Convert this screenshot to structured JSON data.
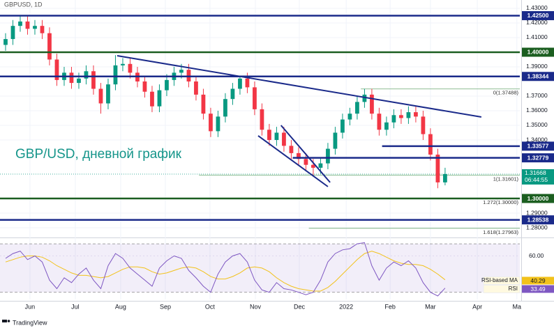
{
  "title": "GBPUSD, 1D",
  "brand": "TradingView",
  "chart_data": [
    {
      "type": "candlestick",
      "annotation": "GBP/USD, дневной график",
      "up_color": "#089981",
      "down_color": "#f23645",
      "values": [
        [
          1.405,
          1.413,
          1.401,
          1.409
        ],
        [
          1.409,
          1.422,
          1.405,
          1.418
        ],
        [
          1.418,
          1.425,
          1.414,
          1.421
        ],
        [
          1.421,
          1.425,
          1.412,
          1.416
        ],
        [
          1.416,
          1.422,
          1.412,
          1.418
        ],
        [
          1.418,
          1.422,
          1.409,
          1.413
        ],
        [
          1.413,
          1.417,
          1.391,
          1.395
        ],
        [
          1.395,
          1.399,
          1.377,
          1.381
        ],
        [
          1.381,
          1.39,
          1.377,
          1.386
        ],
        [
          1.386,
          1.39,
          1.375,
          1.379
        ],
        [
          1.379,
          1.386,
          1.375,
          1.382
        ],
        [
          1.382,
          1.391,
          1.378,
          1.387
        ],
        [
          1.387,
          1.391,
          1.371,
          1.375
        ],
        [
          1.375,
          1.379,
          1.358,
          1.365
        ],
        [
          1.365,
          1.382,
          1.361,
          1.378
        ],
        [
          1.378,
          1.398,
          1.374,
          1.391
        ],
        [
          1.391,
          1.396,
          1.387,
          1.392
        ],
        [
          1.392,
          1.396,
          1.382,
          1.386
        ],
        [
          1.386,
          1.39,
          1.376,
          1.38
        ],
        [
          1.38,
          1.384,
          1.369,
          1.373
        ],
        [
          1.373,
          1.377,
          1.359,
          1.363
        ],
        [
          1.363,
          1.378,
          1.359,
          1.374
        ],
        [
          1.374,
          1.385,
          1.37,
          1.381
        ],
        [
          1.381,
          1.39,
          1.377,
          1.386
        ],
        [
          1.386,
          1.392,
          1.382,
          1.388
        ],
        [
          1.388,
          1.392,
          1.376,
          1.38
        ],
        [
          1.38,
          1.384,
          1.367,
          1.371
        ],
        [
          1.371,
          1.375,
          1.354,
          1.358
        ],
        [
          1.358,
          1.362,
          1.342,
          1.346
        ],
        [
          1.346,
          1.36,
          1.342,
          1.356
        ],
        [
          1.356,
          1.372,
          1.352,
          1.368
        ],
        [
          1.368,
          1.379,
          1.364,
          1.375
        ],
        [
          1.375,
          1.384,
          1.371,
          1.382
        ],
        [
          1.382,
          1.386,
          1.372,
          1.376
        ],
        [
          1.376,
          1.38,
          1.357,
          1.361
        ],
        [
          1.361,
          1.365,
          1.343,
          1.347
        ],
        [
          1.347,
          1.351,
          1.336,
          1.34
        ],
        [
          1.34,
          1.349,
          1.336,
          1.345
        ],
        [
          1.345,
          1.349,
          1.332,
          1.336
        ],
        [
          1.336,
          1.34,
          1.327,
          1.331
        ],
        [
          1.331,
          1.335,
          1.323,
          1.327
        ],
        [
          1.327,
          1.331,
          1.319,
          1.323
        ],
        [
          1.323,
          1.327,
          1.316,
          1.321
        ],
        [
          1.321,
          1.328,
          1.317,
          1.324
        ],
        [
          1.324,
          1.338,
          1.32,
          1.334
        ],
        [
          1.334,
          1.349,
          1.33,
          1.345
        ],
        [
          1.345,
          1.358,
          1.341,
          1.354
        ],
        [
          1.354,
          1.362,
          1.35,
          1.358
        ],
        [
          1.358,
          1.37,
          1.354,
          1.366
        ],
        [
          1.366,
          1.375,
          1.362,
          1.371
        ],
        [
          1.371,
          1.375,
          1.354,
          1.358
        ],
        [
          1.358,
          1.362,
          1.343,
          1.347
        ],
        [
          1.347,
          1.356,
          1.343,
          1.352
        ],
        [
          1.352,
          1.361,
          1.348,
          1.357
        ],
        [
          1.357,
          1.361,
          1.351,
          1.355
        ],
        [
          1.355,
          1.363,
          1.351,
          1.359
        ],
        [
          1.359,
          1.363,
          1.352,
          1.356
        ],
        [
          1.356,
          1.36,
          1.34,
          1.344
        ],
        [
          1.344,
          1.348,
          1.326,
          1.33
        ],
        [
          1.33,
          1.334,
          1.307,
          1.311
        ],
        [
          1.311,
          1.321,
          1.309,
          1.31668
        ]
      ],
      "countdown": "06:44:55",
      "xlim": [
        -0.76,
        70.2
      ],
      "xticks": [
        {
          "value": 3.33,
          "label": "Jun"
        },
        {
          "value": 9.52,
          "label": "Jul"
        },
        {
          "value": 15.71,
          "label": "Aug"
        },
        {
          "value": 21.81,
          "label": "Sep"
        },
        {
          "value": 27.9,
          "label": "Oct"
        },
        {
          "value": 34.1,
          "label": "Nov"
        },
        {
          "value": 40.1,
          "label": "Dec"
        },
        {
          "value": 46.5,
          "label": "2022"
        },
        {
          "value": 52.5,
          "label": "Feb"
        },
        {
          "value": 58,
          "label": "Mar"
        },
        {
          "value": 64.4,
          "label": "Apr"
        },
        {
          "value": 69.8,
          "label": "Ma"
        }
      ],
      "ylim": [
        1.2762,
        1.4357
      ],
      "yticks": [
        {
          "value": 1.43,
          "label": "1.43000"
        },
        {
          "value": 1.42,
          "label": "1.42000"
        },
        {
          "value": 1.41,
          "label": "1.41000"
        },
        {
          "value": 1.39,
          "label": "1.39000"
        },
        {
          "value": 1.37,
          "label": "1.37000"
        },
        {
          "value": 1.36,
          "label": "1.36000"
        },
        {
          "value": 1.35,
          "label": "1.35000"
        },
        {
          "value": 1.34,
          "label": "1.34000"
        },
        {
          "value": 1.29,
          "label": "1.29000"
        },
        {
          "value": 1.28,
          "label": "1.28000"
        }
      ],
      "grid": true,
      "levels": [
        {
          "value": 1.425,
          "label": "1.42500",
          "color": "#1a2a8a"
        },
        {
          "value": 1.4,
          "label": "1.40000",
          "color": "#1b5e20"
        },
        {
          "value": 1.38344,
          "label": "1.38344",
          "color": "#1a2a8a"
        },
        {
          "value": 1.33577,
          "label": "1.33577",
          "color": "#1a2a8a",
          "from": 51.4
        },
        {
          "value": 1.32779,
          "label": "1.32779",
          "color": "#1a2a8a",
          "from": 39.2
        },
        {
          "value": 1.3,
          "label": "1.30000",
          "color": "#1b5e20"
        },
        {
          "value": 1.28538,
          "label": "1.28538",
          "color": "#1a2a8a"
        }
      ],
      "trendlines": [
        {
          "x": [
            15.24,
            64.95
          ],
          "y": [
            1.3976,
            1.3557
          ]
        },
        {
          "x": [
            34.48,
            44.0
          ],
          "y": [
            1.3429,
            1.3081
          ]
        },
        {
          "x": [
            37.6,
            44.3
          ],
          "y": [
            1.35,
            1.311
          ]
        }
      ],
      "trendline_color": "#1a2a8a",
      "fib": [
        {
          "value": 1.37488,
          "label": "0(1.37488)",
          "from": 48.5
        },
        {
          "value": 1.31601,
          "label": "1(1.31601)",
          "from": 26.4
        },
        {
          "value": 1.3,
          "label": "1.272(1.30000)",
          "from": 41.4
        },
        {
          "value": 1.27963,
          "label": "1.618(1.27963)",
          "from": 41.4
        }
      ],
      "fib_color": "#6aa870"
    },
    {
      "type": "line",
      "ylim": [
        24.1,
        74.1
      ],
      "yticks": [
        {
          "value": 60,
          "label": "60.00"
        }
      ],
      "band": [
        30,
        70
      ],
      "series": [
        {
          "name": "RSI-based MA",
          "color": "#f2c21b",
          "values": [
            55,
            57,
            59,
            60,
            60,
            59,
            56,
            52,
            49,
            46,
            44,
            44,
            43,
            42,
            43,
            46,
            49,
            51,
            51,
            50,
            47,
            45,
            46,
            48,
            50,
            51,
            50,
            47,
            43,
            41,
            41,
            43,
            46,
            50,
            51,
            50,
            47,
            42,
            38,
            35,
            33,
            32,
            31,
            31,
            34,
            39,
            45,
            51,
            57,
            62,
            64,
            62,
            59,
            56,
            54,
            53,
            53,
            52,
            49,
            45,
            40.29
          ]
        },
        {
          "name": "RSI",
          "color": "#7e57c2",
          "values": [
            58,
            62,
            64,
            57,
            60,
            55,
            40,
            33,
            42,
            38,
            45,
            50,
            40,
            33,
            52,
            62,
            58,
            50,
            45,
            40,
            35,
            50,
            56,
            60,
            58,
            48,
            42,
            35,
            30,
            45,
            55,
            60,
            62,
            55,
            40,
            32,
            30,
            38,
            33,
            32,
            30,
            28,
            30,
            40,
            55,
            62,
            65,
            66,
            70,
            71,
            52,
            40,
            50,
            55,
            52,
            56,
            50,
            38,
            30,
            27,
            33.49
          ]
        }
      ]
    }
  ]
}
